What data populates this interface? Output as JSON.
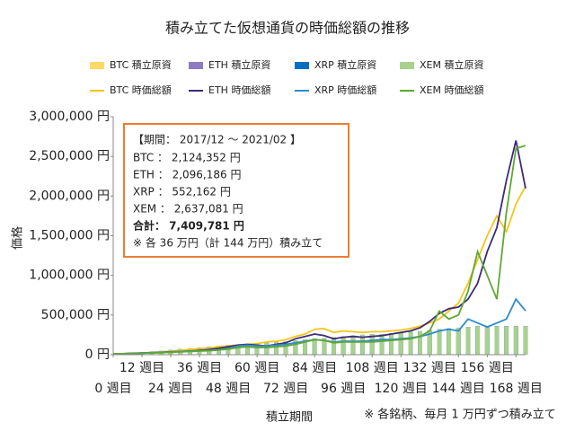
{
  "chart_data": {
    "type": "bar-line",
    "title": "積み立てた仮想通貨の時価総額の推移",
    "x_label": "積立期間",
    "y_label": "価格",
    "footnote": "※ 各銘柄、毎月 1 万円ずつ積み立て",
    "xlim": [
      0,
      172
    ],
    "xticks": [
      {
        "value": 0,
        "label": "0 週目"
      },
      {
        "value": 12,
        "label": "12 週目"
      },
      {
        "value": 24,
        "label": "24 週目"
      },
      {
        "value": 36,
        "label": "36 週目"
      },
      {
        "value": 48,
        "label": "48 週目"
      },
      {
        "value": 60,
        "label": "60 週目"
      },
      {
        "value": 72,
        "label": "72 週目"
      },
      {
        "value": 84,
        "label": "84 週目"
      },
      {
        "value": 96,
        "label": "96 週目"
      },
      {
        "value": 108,
        "label": "108 週目"
      },
      {
        "value": 120,
        "label": "120 週目"
      },
      {
        "value": 132,
        "label": "132 週目"
      },
      {
        "value": 144,
        "label": "144 週目"
      },
      {
        "value": 156,
        "label": "156 週目"
      },
      {
        "value": 168,
        "label": "168 週目"
      }
    ],
    "ylim": [
      0,
      3000000
    ],
    "yticks": [
      {
        "value": 0,
        "label": "0 円"
      },
      {
        "value": 500000,
        "label": "500,000 円"
      },
      {
        "value": 1000000,
        "label": "1,000,000 円"
      },
      {
        "value": 1500000,
        "label": "1,500,000 円"
      },
      {
        "value": 2000000,
        "label": "2,000,000 円"
      },
      {
        "value": 2500000,
        "label": "2,500,000 円"
      },
      {
        "value": 3000000,
        "label": "3,000,000 円"
      }
    ],
    "x": [
      0,
      4,
      8,
      12,
      16,
      20,
      24,
      28,
      32,
      36,
      40,
      44,
      48,
      52,
      56,
      60,
      64,
      68,
      72,
      76,
      80,
      84,
      88,
      92,
      96,
      100,
      104,
      108,
      112,
      116,
      120,
      124,
      128,
      132,
      136,
      140,
      144,
      148,
      152,
      156,
      160,
      164,
      168,
      172
    ],
    "series": [
      {
        "name": "BTC 積立原資",
        "kind": "bar",
        "color": "#ffd966",
        "values": [
          10000,
          10000,
          20000,
          30000,
          40000,
          50000,
          60000,
          70000,
          80000,
          90000,
          100000,
          110000,
          120000,
          130000,
          130000,
          140000,
          150000,
          160000,
          170000,
          180000,
          190000,
          200000,
          210000,
          220000,
          230000,
          240000,
          250000,
          260000,
          260000,
          270000,
          280000,
          290000,
          300000,
          310000,
          320000,
          330000,
          340000,
          350000,
          360000,
          360000,
          360000,
          360000,
          360000,
          360000
        ]
      },
      {
        "name": "ETH 積立原資",
        "kind": "bar",
        "color": "#8e7cc3",
        "values": [
          10000,
          10000,
          20000,
          30000,
          40000,
          50000,
          60000,
          70000,
          80000,
          90000,
          100000,
          110000,
          120000,
          130000,
          130000,
          140000,
          150000,
          160000,
          170000,
          180000,
          190000,
          200000,
          210000,
          220000,
          230000,
          240000,
          250000,
          260000,
          260000,
          270000,
          280000,
          290000,
          300000,
          310000,
          320000,
          330000,
          340000,
          350000,
          360000,
          360000,
          360000,
          360000,
          360000,
          360000
        ]
      },
      {
        "name": "XRP 積立原資",
        "kind": "bar",
        "color": "#0070c0",
        "values": [
          10000,
          10000,
          20000,
          30000,
          40000,
          50000,
          60000,
          70000,
          80000,
          90000,
          100000,
          110000,
          120000,
          130000,
          130000,
          140000,
          150000,
          160000,
          170000,
          180000,
          190000,
          200000,
          210000,
          220000,
          230000,
          240000,
          250000,
          260000,
          260000,
          270000,
          280000,
          290000,
          300000,
          310000,
          320000,
          330000,
          340000,
          350000,
          360000,
          360000,
          360000,
          360000,
          360000,
          360000
        ]
      },
      {
        "name": "XEM 積立原資",
        "kind": "bar",
        "color": "#a9d18e",
        "values": [
          10000,
          10000,
          20000,
          30000,
          40000,
          50000,
          60000,
          70000,
          80000,
          90000,
          100000,
          110000,
          120000,
          130000,
          130000,
          140000,
          150000,
          160000,
          170000,
          180000,
          190000,
          200000,
          210000,
          220000,
          230000,
          240000,
          250000,
          260000,
          260000,
          270000,
          280000,
          290000,
          300000,
          310000,
          320000,
          330000,
          340000,
          350000,
          360000,
          360000,
          360000,
          360000,
          360000,
          360000
        ]
      },
      {
        "name": "BTC 時価総額",
        "kind": "line",
        "color": "#f5c518",
        "values": [
          10000,
          9000,
          16000,
          22000,
          28000,
          35000,
          45000,
          55000,
          65000,
          75000,
          85000,
          100000,
          110000,
          125000,
          130000,
          140000,
          160000,
          170000,
          190000,
          230000,
          260000,
          320000,
          330000,
          280000,
          300000,
          290000,
          280000,
          290000,
          290000,
          300000,
          310000,
          330000,
          360000,
          400000,
          450000,
          550000,
          650000,
          900000,
          1200000,
          1500000,
          1750000,
          1550000,
          1900000,
          2124352
        ]
      },
      {
        "name": "ETH 時価総額",
        "kind": "line",
        "color": "#3d2b7a",
        "values": [
          10000,
          12000,
          18000,
          20000,
          25000,
          30000,
          35000,
          40000,
          45000,
          55000,
          65000,
          80000,
          100000,
          120000,
          130000,
          120000,
          110000,
          130000,
          150000,
          200000,
          230000,
          260000,
          240000,
          200000,
          220000,
          230000,
          220000,
          230000,
          240000,
          260000,
          280000,
          300000,
          340000,
          420000,
          520000,
          580000,
          600000,
          700000,
          900000,
          1300000,
          1600000,
          2200000,
          2700000,
          2096186
        ]
      },
      {
        "name": "XRP 時価総額",
        "kind": "line",
        "color": "#2e8bd0",
        "values": [
          10000,
          10000,
          14000,
          20000,
          25000,
          30000,
          35000,
          40000,
          45000,
          50000,
          55000,
          60000,
          80000,
          110000,
          120000,
          110000,
          110000,
          120000,
          130000,
          150000,
          170000,
          190000,
          180000,
          160000,
          170000,
          170000,
          170000,
          180000,
          190000,
          190000,
          200000,
          210000,
          230000,
          260000,
          300000,
          320000,
          300000,
          450000,
          400000,
          350000,
          400000,
          450000,
          700000,
          552162
        ]
      },
      {
        "name": "XEM 時価総額",
        "kind": "line",
        "color": "#5ea832",
        "values": [
          10000,
          12000,
          16000,
          18000,
          22000,
          25000,
          30000,
          35000,
          40000,
          45000,
          50000,
          60000,
          70000,
          90000,
          100000,
          90000,
          90000,
          100000,
          110000,
          130000,
          160000,
          190000,
          180000,
          150000,
          160000,
          160000,
          160000,
          160000,
          170000,
          180000,
          190000,
          200000,
          230000,
          300000,
          550000,
          450000,
          500000,
          800000,
          1300000,
          1000000,
          700000,
          1800000,
          2600000,
          2637081
        ]
      }
    ],
    "annotation": {
      "lines": [
        "【期間： 2017/12 ～ 2021/02 】",
        "BTC ： 2,124,352 円",
        "ETH ： 2,096,186 円",
        "XRP ： 552,162 円",
        "XEM ： 2,637,081 円",
        "合計： 7,409,781 円",
        "※ 各 36 万円（計 144 万円）積み立て"
      ]
    }
  }
}
